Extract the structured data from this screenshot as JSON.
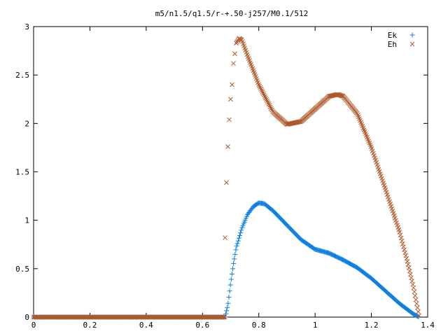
{
  "chart_data": {
    "type": "scatter",
    "title": "m5/n1.5/q1.5/r-+.50-j257/M0.1/512",
    "xlabel": "",
    "ylabel": "",
    "xlim": [
      0,
      1.4
    ],
    "ylim": [
      0,
      3
    ],
    "x_ticks": [
      "0",
      "0.2",
      "0.4",
      "0.6",
      "0.8",
      "1",
      "1.2",
      "1.4"
    ],
    "y_ticks": [
      "0",
      "0.5",
      "1",
      "1.5",
      "2",
      "2.5",
      "3"
    ],
    "grid": false,
    "legend_position": "top-right",
    "series": [
      {
        "name": "Ek",
        "marker": "plus",
        "color": "#0f7fe0",
        "zero_until": 0.68,
        "x_max": 1.37,
        "curve": [
          [
            0.68,
            0.0
          ],
          [
            0.69,
            0.12
          ],
          [
            0.7,
            0.35
          ],
          [
            0.71,
            0.55
          ],
          [
            0.72,
            0.72
          ],
          [
            0.74,
            0.92
          ],
          [
            0.76,
            1.06
          ],
          [
            0.78,
            1.14
          ],
          [
            0.8,
            1.18
          ],
          [
            0.82,
            1.17
          ],
          [
            0.85,
            1.1
          ],
          [
            0.9,
            0.95
          ],
          [
            0.95,
            0.8
          ],
          [
            1.0,
            0.7
          ],
          [
            1.05,
            0.66
          ],
          [
            1.1,
            0.59
          ],
          [
            1.15,
            0.51
          ],
          [
            1.2,
            0.4
          ],
          [
            1.25,
            0.27
          ],
          [
            1.3,
            0.14
          ],
          [
            1.35,
            0.03
          ],
          [
            1.37,
            0.0
          ]
        ]
      },
      {
        "name": "Eh",
        "marker": "cross",
        "color": "#b0582a",
        "zero_until": 0.68,
        "x_max": 1.37,
        "curve": [
          [
            0.68,
            0.82
          ],
          [
            0.685,
            1.39
          ],
          [
            0.69,
            1.76
          ],
          [
            0.695,
            2.04
          ],
          [
            0.7,
            2.25
          ],
          [
            0.705,
            2.4
          ],
          [
            0.71,
            2.62
          ],
          [
            0.715,
            2.72
          ],
          [
            0.72,
            2.83
          ],
          [
            0.73,
            2.88
          ],
          [
            0.74,
            2.86
          ],
          [
            0.76,
            2.7
          ],
          [
            0.8,
            2.4
          ],
          [
            0.85,
            2.12
          ],
          [
            0.9,
            1.99
          ],
          [
            0.95,
            2.02
          ],
          [
            1.0,
            2.15
          ],
          [
            1.05,
            2.28
          ],
          [
            1.08,
            2.3
          ],
          [
            1.1,
            2.28
          ],
          [
            1.15,
            2.1
          ],
          [
            1.2,
            1.75
          ],
          [
            1.25,
            1.32
          ],
          [
            1.3,
            0.88
          ],
          [
            1.33,
            0.55
          ],
          [
            1.35,
            0.3
          ],
          [
            1.36,
            0.15
          ],
          [
            1.37,
            0.0
          ]
        ]
      }
    ]
  }
}
